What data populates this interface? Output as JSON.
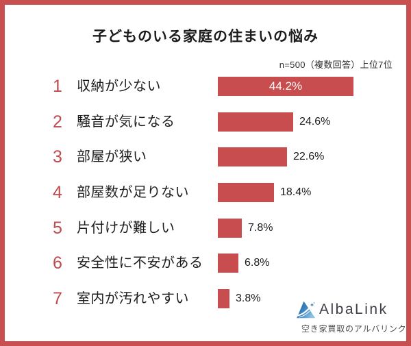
{
  "page": {
    "title": "子どものいる家庭の住まいの悩み",
    "note": "n=500（複数回答）上位7位"
  },
  "chart_data": {
    "type": "bar",
    "orientation": "horizontal",
    "title": "子どものいる家庭の住まいの悩み",
    "note": "n=500（複数回答）上位7位",
    "categories": [
      "収納が少ない",
      "騒音が気になる",
      "部屋が狭い",
      "部屋数が足りない",
      "片付けが難しい",
      "安全性に不安がある",
      "室内が汚れやすい"
    ],
    "values": [
      44.2,
      24.6,
      22.6,
      18.4,
      7.8,
      6.8,
      3.8
    ],
    "value_suffix": "%",
    "xlim": [
      0,
      45
    ],
    "grid": false,
    "legend": false,
    "bar_color": "#c74d4f",
    "items": [
      {
        "rank": "1",
        "label": "収納が少ない",
        "value": 44.2,
        "display": "44.2%",
        "value_inside": true
      },
      {
        "rank": "2",
        "label": "騒音が気になる",
        "value": 24.6,
        "display": "24.6%",
        "value_inside": false
      },
      {
        "rank": "3",
        "label": "部屋が狭い",
        "value": 22.6,
        "display": "22.6%",
        "value_inside": false
      },
      {
        "rank": "4",
        "label": "部屋数が足りない",
        "value": 18.4,
        "display": "18.4%",
        "value_inside": false
      },
      {
        "rank": "5",
        "label": "片付けが難しい",
        "value": 7.8,
        "display": "7.8%",
        "value_inside": false
      },
      {
        "rank": "6",
        "label": "安全性に不安がある",
        "value": 6.8,
        "display": "6.8%",
        "value_inside": false
      },
      {
        "rank": "7",
        "label": "室内が汚れやすい",
        "value": 3.8,
        "display": "3.8%",
        "value_inside": false
      }
    ]
  },
  "logo": {
    "brand": "AlbaLink",
    "tagline": "空き家買取のアルバリンク",
    "icon": "mountain-triangle-logo",
    "brand_color": "#3b3c45",
    "icon_color_dark": "#1d5c9f",
    "icon_color_light": "#8fc3e4"
  },
  "colors": {
    "frame": "#c85050",
    "bar": "#c74d4f",
    "rank_number": "#c0494d",
    "background": "#ffffff",
    "value_inside_text": "#ffffff",
    "value_outside_text": "#1a1a1a"
  }
}
